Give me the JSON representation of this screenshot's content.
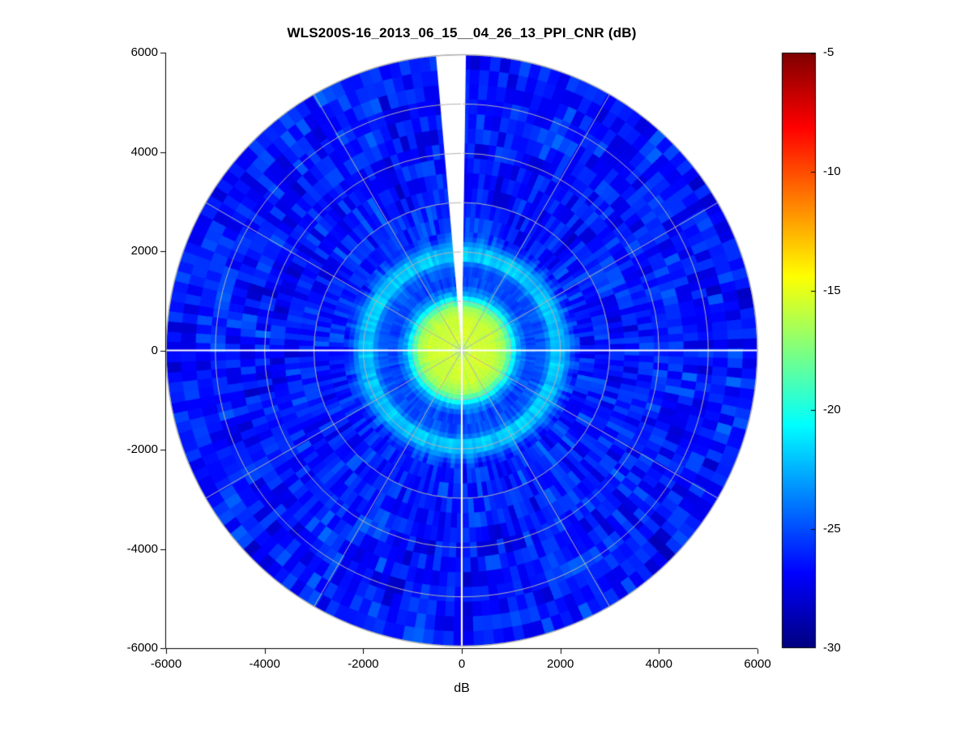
{
  "figure": {
    "title": "WLS200S-16_2013_06_15__04_26_13_PPI_CNR (dB)",
    "xlabel": "dB",
    "background": "#ffffff"
  },
  "chart_data": {
    "type": "heatmap",
    "projection": "polar-ppi",
    "title": "WLS200S-16_2013_06_15__04_26_13_PPI_CNR (dB)",
    "xlabel": "dB",
    "ylabel": "",
    "xlim": [
      -6000,
      6000
    ],
    "ylim": [
      -6000,
      6000
    ],
    "x_ticks": [
      -6000,
      -4000,
      -2000,
      0,
      2000,
      4000,
      6000
    ],
    "y_ticks": [
      -6000,
      -4000,
      -2000,
      0,
      2000,
      4000,
      6000
    ],
    "max_range": 6000,
    "grid": {
      "circle_radii": [
        1000,
        2000,
        3000,
        4000,
        5000,
        6000
      ],
      "spoke_step_deg": 30,
      "grid_color": "#b3b3b3",
      "axis_cross_color": "#ffffff"
    },
    "missing_data_wedge_deg": {
      "from_north_cw": -5.0,
      "to_north_cw": 0.8
    },
    "colorbar": {
      "colormap": "jet",
      "vmin": -30,
      "vmax": -5,
      "ticks": [
        -5,
        -10,
        -15,
        -20,
        -25,
        -30
      ],
      "units": "dB"
    },
    "radial_cnr_profile_db": [
      {
        "r": 0,
        "cnr": -16.4
      },
      {
        "r": 250,
        "cnr": -15.4
      },
      {
        "r": 650,
        "cnr": -15.7
      },
      {
        "r": 850,
        "cnr": -16.8
      },
      {
        "r": 1000,
        "cnr": -19.5
      },
      {
        "r": 1150,
        "cnr": -23.0
      },
      {
        "r": 1350,
        "cnr": -25.2
      },
      {
        "r": 1700,
        "cnr": -24.8
      },
      {
        "r": 1850,
        "cnr": -21.8
      },
      {
        "r": 2050,
        "cnr": -22.3
      },
      {
        "r": 2300,
        "cnr": -25.9
      },
      {
        "r": 3000,
        "cnr": -26.3
      },
      {
        "r": 6000,
        "cnr": -26.4
      }
    ],
    "noise": {
      "inner": 0.45,
      "mid": 0.6,
      "outer": 1.35,
      "outer_lf": 0.6,
      "fine": 0.3,
      "block_az_deg": 2,
      "block_range": 300
    }
  }
}
